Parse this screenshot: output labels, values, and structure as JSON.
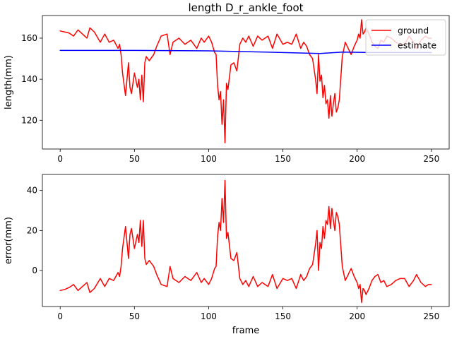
{
  "chart_data": [
    {
      "type": "line",
      "title": "length D_r_ankle_foot",
      "xlabel": "",
      "ylabel": "length(mm)",
      "xlim": [
        -12,
        262
      ],
      "ylim": [
        106,
        171
      ],
      "xticks": [
        0,
        50,
        100,
        150,
        200,
        250
      ],
      "yticks": [
        120,
        140,
        160
      ],
      "legend": {
        "placement": "top-right"
      },
      "series": [
        {
          "name": "ground",
          "color": "#ff0000",
          "x": [
            0,
            3,
            6,
            9,
            12,
            15,
            18,
            20,
            23,
            27,
            30,
            33,
            36,
            39,
            40,
            41,
            42,
            44,
            46,
            47,
            48,
            50,
            52,
            53,
            54,
            55,
            56,
            57,
            58,
            60,
            63,
            65,
            68,
            72,
            74,
            76,
            80,
            84,
            88,
            92,
            95,
            97,
            100,
            102,
            104,
            105,
            106,
            107,
            108,
            109,
            110,
            111,
            112,
            113,
            115,
            117,
            119,
            121,
            123,
            125,
            127,
            130,
            133,
            136,
            140,
            143,
            146,
            150,
            153,
            156,
            159,
            162,
            164,
            166,
            168,
            170,
            172,
            173,
            174,
            175,
            176,
            177,
            178,
            179,
            180,
            181,
            182,
            183,
            184,
            185,
            186,
            187,
            188,
            190,
            192,
            194,
            196,
            198,
            200,
            201,
            202,
            203,
            204,
            205,
            206,
            208,
            210,
            212,
            214,
            216,
            218,
            220,
            223,
            226,
            229,
            232,
            235,
            238,
            240,
            243,
            246,
            248,
            250
          ],
          "y": [
            163.5,
            163,
            162.5,
            161,
            164,
            162,
            160,
            165,
            163,
            158,
            162,
            158,
            159,
            155,
            157,
            152,
            143,
            132,
            148,
            136,
            133,
            143,
            136,
            140,
            130,
            142,
            129,
            148,
            151,
            149,
            152,
            156,
            161,
            162,
            152,
            158,
            160,
            157,
            159,
            155,
            160,
            158,
            161,
            158,
            153,
            152,
            137,
            130,
            134,
            118,
            130,
            109,
            138,
            135,
            147,
            148,
            144,
            157,
            160,
            158,
            161,
            156,
            161,
            159,
            161,
            155,
            162,
            157,
            158,
            157,
            162,
            155,
            158,
            156,
            152,
            150,
            140,
            133,
            152,
            139,
            142,
            131,
            137,
            128,
            130,
            121,
            132,
            122,
            128,
            133,
            124,
            126,
            130,
            151,
            158,
            155,
            152,
            156,
            159,
            162,
            160,
            169,
            162,
            163,
            165,
            162,
            158,
            156,
            155,
            159,
            158,
            161,
            160,
            158,
            157,
            157,
            161,
            158,
            155,
            159,
            161,
            160,
            160
          ]
        },
        {
          "name": "estimate",
          "color": "#0000ff",
          "x": [
            0,
            50,
            100,
            150,
            175,
            190,
            210,
            230,
            250
          ],
          "y": [
            154,
            154,
            153.8,
            153,
            152.5,
            153.2,
            153,
            153,
            153
          ]
        }
      ]
    },
    {
      "type": "line",
      "title": "",
      "xlabel": "frame",
      "ylabel": "error(mm)",
      "xlim": [
        -12,
        262
      ],
      "ylim": [
        -18,
        48
      ],
      "xticks": [
        0,
        50,
        100,
        150,
        200,
        250
      ],
      "yticks": [
        0,
        20,
        40
      ],
      "series": [
        {
          "name": "",
          "color": "#ff0000",
          "x": [
            0,
            3,
            6,
            9,
            12,
            15,
            18,
            20,
            23,
            27,
            30,
            33,
            36,
            39,
            40,
            41,
            42,
            44,
            46,
            47,
            48,
            50,
            52,
            53,
            54,
            55,
            56,
            57,
            58,
            60,
            63,
            65,
            68,
            72,
            74,
            76,
            80,
            84,
            88,
            92,
            95,
            97,
            100,
            102,
            104,
            105,
            106,
            107,
            108,
            109,
            110,
            111,
            112,
            113,
            115,
            117,
            119,
            121,
            123,
            125,
            127,
            130,
            133,
            136,
            140,
            143,
            146,
            150,
            153,
            156,
            159,
            162,
            164,
            166,
            168,
            170,
            172,
            173,
            174,
            175,
            176,
            177,
            178,
            179,
            180,
            181,
            182,
            183,
            184,
            185,
            186,
            187,
            188,
            190,
            192,
            194,
            196,
            198,
            200,
            201,
            202,
            203,
            204,
            205,
            206,
            208,
            210,
            212,
            214,
            216,
            218,
            220,
            223,
            226,
            229,
            232,
            235,
            238,
            240,
            243,
            246,
            248,
            250
          ],
          "y": [
            -10,
            -9.5,
            -8.5,
            -7,
            -10,
            -8,
            -6,
            -11,
            -9,
            -4,
            -8,
            -4,
            -5,
            -1,
            -3,
            2,
            11,
            22,
            6,
            18,
            21,
            11,
            18,
            14,
            25,
            12,
            25,
            6,
            3,
            5,
            2,
            -2,
            -7,
            -8,
            2,
            -4,
            -6,
            -3,
            -5,
            -1,
            -6,
            -4,
            -7,
            -4,
            1,
            2,
            17,
            24,
            20,
            36,
            24,
            45,
            16,
            19,
            6,
            5,
            9,
            -4,
            -7,
            -5,
            -8,
            -3,
            -8,
            -6,
            -8,
            -2,
            -9,
            -4,
            -5,
            -4,
            -9,
            -2,
            -5,
            -3,
            1,
            3,
            13,
            20,
            0,
            14,
            11,
            22,
            16,
            25,
            23,
            32,
            21,
            31,
            25,
            20,
            29,
            27,
            23,
            2,
            -5,
            -2,
            1,
            -3,
            -6,
            -9,
            -7,
            -16,
            -9,
            -10,
            -12,
            -9,
            -5,
            -3,
            -2,
            -6,
            -5,
            -8,
            -7,
            -5,
            -4,
            -4,
            -8,
            -5,
            -2,
            -6,
            -8,
            -7,
            -7
          ]
        }
      ]
    }
  ]
}
